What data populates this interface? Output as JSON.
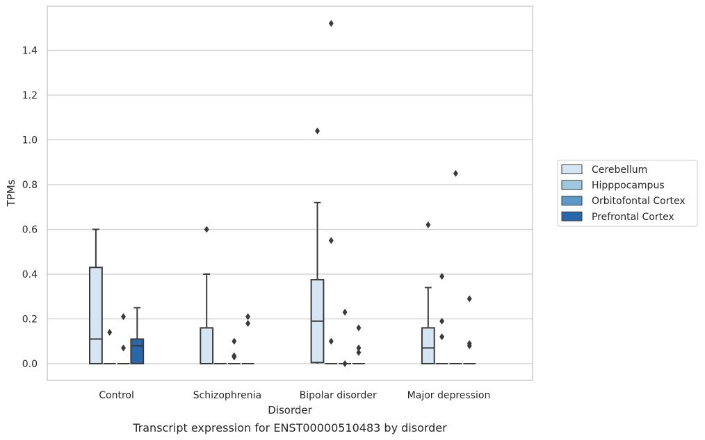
{
  "chart_data": {
    "type": "box",
    "title": "",
    "caption": "Transcript expression for ENST00000510483 by disorder",
    "xlabel": "Disorder",
    "ylabel": "TPMs",
    "ylim": [
      -0.075,
      1.6
    ],
    "yticks": [
      "0.0",
      "0.2",
      "0.4",
      "0.6",
      "0.8",
      "1.0",
      "1.2",
      "1.4"
    ],
    "ytick_values": [
      0,
      0.2,
      0.4,
      0.6,
      0.8,
      1.0,
      1.2,
      1.4
    ],
    "grid": "horizontal",
    "legend_position": "right",
    "categories": [
      "Control",
      "Schizophrenia",
      "Bipolar disorder",
      "Major depression"
    ],
    "series": [
      {
        "name": "Cerebellum",
        "color": "#d6e5f4",
        "boxes": [
          {
            "category": "Control",
            "q1": 0.0,
            "median": 0.11,
            "q3": 0.43,
            "whisker_low": 0.0,
            "whisker_high": 0.6,
            "outliers": []
          },
          {
            "category": "Schizophrenia",
            "q1": 0.0,
            "median": 0.0,
            "q3": 0.16,
            "whisker_low": 0.0,
            "whisker_high": 0.4,
            "outliers": [
              0.6
            ]
          },
          {
            "category": "Bipolar disorder",
            "q1": 0.005,
            "median": 0.19,
            "q3": 0.375,
            "whisker_low": 0.0,
            "whisker_high": 0.72,
            "outliers": [
              1.04
            ]
          },
          {
            "category": "Major depression",
            "q1": 0.0,
            "median": 0.07,
            "q3": 0.16,
            "whisker_low": 0.0,
            "whisker_high": 0.34,
            "outliers": [
              0.62
            ]
          }
        ]
      },
      {
        "name": "Hipppocampus",
        "color": "#9ec7e0",
        "boxes": [
          {
            "category": "Control",
            "q1": 0.0,
            "median": 0.0,
            "q3": 0.0,
            "whisker_low": 0.0,
            "whisker_high": 0.0,
            "outliers": [
              0.14
            ]
          },
          {
            "category": "Schizophrenia",
            "q1": 0.0,
            "median": 0.0,
            "q3": 0.0,
            "whisker_low": 0.0,
            "whisker_high": 0.0,
            "outliers": []
          },
          {
            "category": "Bipolar disorder",
            "q1": 0.0,
            "median": 0.0,
            "q3": 0.0,
            "whisker_low": 0.0,
            "whisker_high": 0.0,
            "outliers": [
              1.52,
              0.55,
              0.1
            ]
          },
          {
            "category": "Major depression",
            "q1": 0.0,
            "median": 0.0,
            "q3": 0.0,
            "whisker_low": 0.0,
            "whisker_high": 0.0,
            "outliers": [
              0.39,
              0.19,
              0.12
            ]
          }
        ]
      },
      {
        "name": "Orbitofontal Cortex",
        "color": "#5b9ac8",
        "boxes": [
          {
            "category": "Control",
            "q1": 0.0,
            "median": 0.0,
            "q3": 0.0,
            "whisker_low": 0.0,
            "whisker_high": 0.0,
            "outliers": [
              0.21,
              0.07
            ]
          },
          {
            "category": "Schizophrenia",
            "q1": 0.0,
            "median": 0.0,
            "q3": 0.0,
            "whisker_low": 0.0,
            "whisker_high": 0.0,
            "outliers": [
              0.1,
              0.035,
              0.03
            ]
          },
          {
            "category": "Bipolar disorder",
            "q1": 0.0,
            "median": 0.0,
            "q3": 0.0,
            "whisker_low": 0.0,
            "whisker_high": 0.0,
            "outliers": [
              0.23,
              0.0
            ]
          },
          {
            "category": "Major depression",
            "q1": 0.0,
            "median": 0.0,
            "q3": 0.0,
            "whisker_low": 0.0,
            "whisker_high": 0.0,
            "outliers": [
              0.85
            ]
          }
        ]
      },
      {
        "name": "Prefrontal Cortex",
        "color": "#2867aa",
        "boxes": [
          {
            "category": "Control",
            "q1": 0.0,
            "median": 0.08,
            "q3": 0.11,
            "whisker_low": 0.0,
            "whisker_high": 0.25,
            "outliers": []
          },
          {
            "category": "Schizophrenia",
            "q1": 0.0,
            "median": 0.0,
            "q3": 0.0,
            "whisker_low": 0.0,
            "whisker_high": 0.0,
            "outliers": [
              0.21,
              0.18
            ]
          },
          {
            "category": "Bipolar disorder",
            "q1": 0.0,
            "median": 0.0,
            "q3": 0.0,
            "whisker_low": 0.0,
            "whisker_high": 0.0,
            "outliers": [
              0.16,
              0.07,
              0.05
            ]
          },
          {
            "category": "Major depression",
            "q1": 0.0,
            "median": 0.0,
            "q3": 0.0,
            "whisker_low": 0.0,
            "whisker_high": 0.0,
            "outliers": [
              0.29,
              0.09,
              0.08
            ]
          }
        ]
      }
    ]
  }
}
